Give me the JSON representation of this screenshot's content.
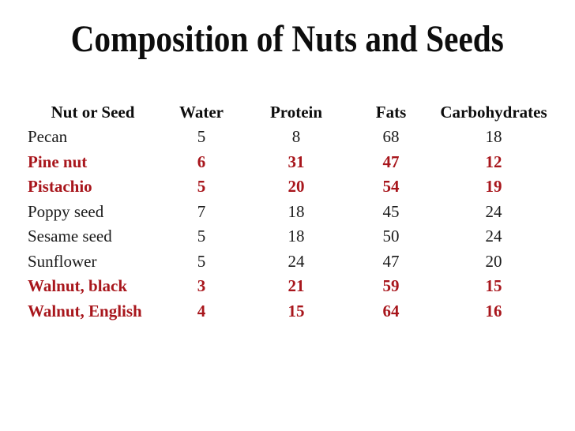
{
  "slide": {
    "title": "Composition of Nuts and Seeds"
  },
  "colors": {
    "background": "#ffffff",
    "title_text": "#0d0d0d",
    "body_text": "#1a1a1a",
    "highlight_text": "#a8161c"
  },
  "table": {
    "columns": [
      "Nut or Seed",
      "Water",
      "Protein",
      "Fats",
      "Carbohydrates"
    ],
    "rows": [
      {
        "name": "Pecan",
        "water": "5",
        "protein": "8",
        "fats": "68",
        "carbohydrates": "18",
        "highlighted": false
      },
      {
        "name": "Pine nut",
        "water": "6",
        "protein": "31",
        "fats": "47",
        "carbohydrates": "12",
        "highlighted": true
      },
      {
        "name": "Pistachio",
        "water": "5",
        "protein": "20",
        "fats": "54",
        "carbohydrates": "19",
        "highlighted": true
      },
      {
        "name": "Poppy seed",
        "water": "7",
        "protein": "18",
        "fats": "45",
        "carbohydrates": "24",
        "highlighted": false
      },
      {
        "name": "Sesame seed",
        "water": "5",
        "protein": "18",
        "fats": "50",
        "carbohydrates": "24",
        "highlighted": false
      },
      {
        "name": "Sunflower",
        "water": "5",
        "protein": "24",
        "fats": "47",
        "carbohydrates": "20",
        "highlighted": false
      },
      {
        "name": "Walnut, black",
        "water": "3",
        "protein": "21",
        "fats": "59",
        "carbohydrates": "15",
        "highlighted": true
      },
      {
        "name": "Walnut, English",
        "water": "4",
        "protein": "15",
        "fats": "64",
        "carbohydrates": "16",
        "highlighted": true
      }
    ]
  }
}
